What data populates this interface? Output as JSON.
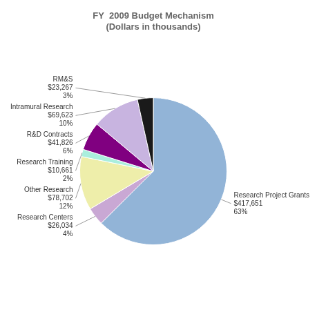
{
  "chart_data": {
    "type": "pie",
    "title": "FY  2009 Budget Mechanism\n(Dollars in thousands)",
    "categories": [
      "Research Project Grants",
      "Research Centers",
      "Other Research",
      "Research Training",
      "R&D Contracts",
      "Intramural Research",
      "RM&S"
    ],
    "values": [
      417651,
      26034,
      78702,
      10661,
      41826,
      69623,
      23267
    ],
    "value_labels": [
      "$417,651",
      "$26,034",
      "$78,702",
      "$10,661",
      "$41,826",
      "$69,623",
      "$23,267"
    ],
    "percents": [
      63,
      4,
      12,
      2,
      6,
      10,
      3
    ],
    "percent_labels": [
      "63%",
      "4%",
      "12%",
      "2%",
      "6%",
      "10%",
      "3%"
    ],
    "colors": [
      "#92b4d7",
      "#c9a8d4",
      "#eeeeaa",
      "#aaeedd",
      "#800080",
      "#c8b4e0",
      "#1a1a1a"
    ],
    "legend": false
  }
}
